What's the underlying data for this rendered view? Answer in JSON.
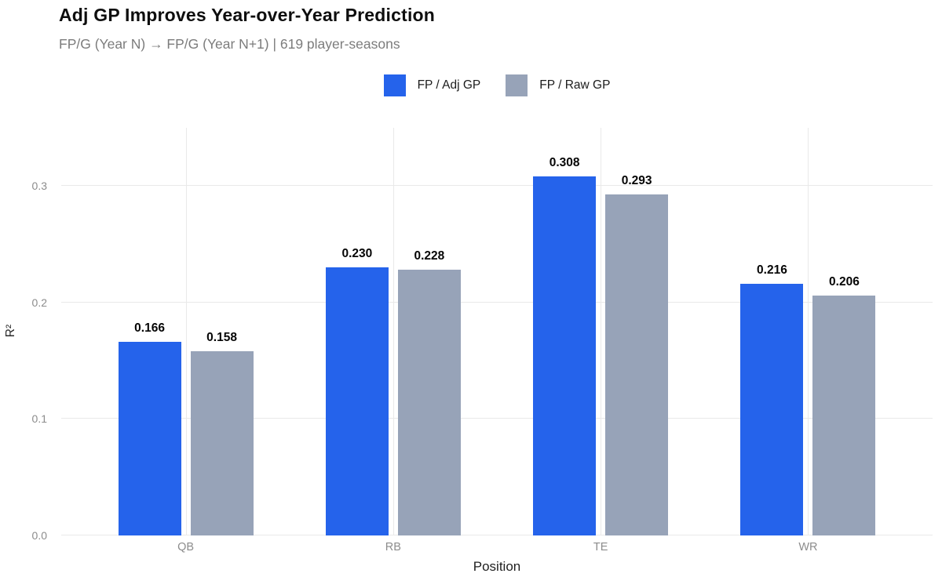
{
  "header": {
    "title": "Adj GP Improves Year-over-Year Prediction",
    "subtitle": "FP/G (Year N) → FP/G (Year N+1) | 619 player-seasons"
  },
  "legend": {
    "items": [
      {
        "label": "FP / Adj GP",
        "color": "#2563EB"
      },
      {
        "label": "FP / Raw GP",
        "color": "#97A3B8"
      }
    ]
  },
  "chart_data": {
    "type": "bar",
    "title": "Adj GP Improves Year-over-Year Prediction",
    "subtitle": "FP/G (Year N) → FP/G (Year N+1) | 619 player-seasons",
    "categories": [
      "QB",
      "RB",
      "TE",
      "WR"
    ],
    "series": [
      {
        "name": "FP / Adj GP",
        "color": "#2563EB",
        "values": [
          0.166,
          0.23,
          0.308,
          0.216
        ]
      },
      {
        "name": "FP / Raw GP",
        "color": "#97A3B8",
        "values": [
          0.158,
          0.228,
          0.293,
          0.206
        ]
      }
    ],
    "value_label_decimals": 3,
    "xlabel": "Position",
    "ylabel": "R²",
    "ylim": [
      0,
      0.35
    ],
    "yticks": [
      0.0,
      0.1,
      0.2,
      0.3
    ],
    "grid": true,
    "legend_position": "top-center",
    "colors": {
      "grid": "#e9e9e9",
      "tick_text": "#8c8c8c",
      "value_label": "#050505",
      "title": "#0e0e0e",
      "subtitle": "#7c7c7c"
    }
  }
}
